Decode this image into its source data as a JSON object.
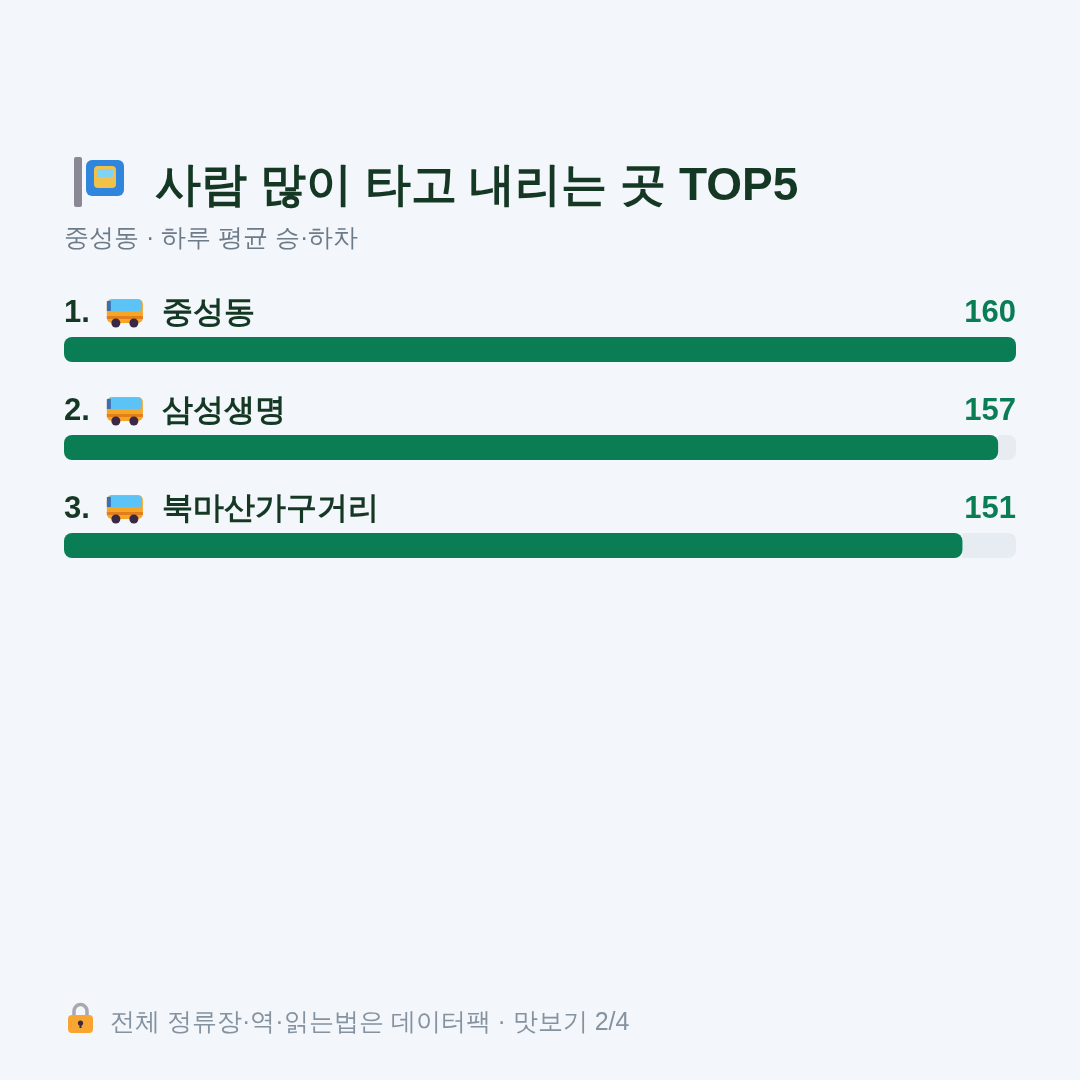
{
  "chart_data": {
    "type": "bar",
    "orientation": "horizontal",
    "title": "사람 많이 타고 내리는 곳 TOP5",
    "subtitle": "중성동 · 하루 평균 승·하차",
    "categories": [
      "1. 중성동",
      "2. 삼성생명",
      "3. 북마산가구거리"
    ],
    "values": [
      160,
      157,
      151
    ],
    "color": "#0b7d55",
    "data_labels": true,
    "annotations": [
      "전체 정류장·역·읽는법은 데이터팩 · 맛보기 2/4"
    ]
  }
}
